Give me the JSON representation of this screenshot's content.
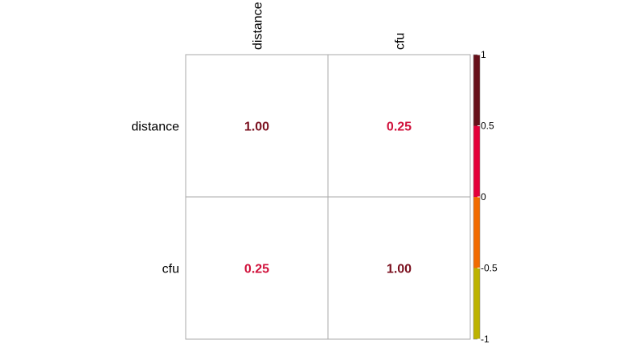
{
  "chart_data": {
    "type": "heatmap",
    "variables": [
      "distance",
      "cfu"
    ],
    "matrix": [
      [
        1.0,
        0.25
      ],
      [
        0.25,
        1.0
      ]
    ],
    "cell_labels": [
      [
        "1.00",
        "0.25"
      ],
      [
        "0.25",
        "1.00"
      ]
    ],
    "colorbar": {
      "range": [
        -1,
        1
      ],
      "ticks": [
        {
          "value": 1,
          "label": "1"
        },
        {
          "value": 0.5,
          "label": "0.5"
        },
        {
          "value": 0,
          "label": "0"
        },
        {
          "value": -0.5,
          "label": "-0.5"
        },
        {
          "value": -1,
          "label": "-1"
        }
      ],
      "bands": [
        {
          "from": 0.5,
          "to": 1,
          "color": "#67101a"
        },
        {
          "from": 0,
          "to": 0.5,
          "color": "#e4003a"
        },
        {
          "from": -0.5,
          "to": 0,
          "color": "#f26b00"
        },
        {
          "from": -1,
          "to": -0.5,
          "color": "#bdb300"
        }
      ],
      "placement": "right"
    },
    "label_colors": {
      "1.00": "#7a0f1e",
      "0.25": "#d0103a"
    },
    "grid": true
  }
}
